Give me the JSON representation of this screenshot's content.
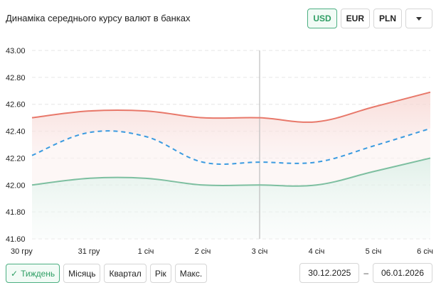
{
  "header": {
    "title": "Динаміка середнього курсу валют в банках"
  },
  "currency_buttons": [
    {
      "label": "USD",
      "active": true
    },
    {
      "label": "EUR",
      "active": false
    },
    {
      "label": "PLN",
      "active": false
    }
  ],
  "period_buttons": [
    {
      "label": "Тиждень",
      "active": true
    },
    {
      "label": "Місяць",
      "active": false
    },
    {
      "label": "Квартал",
      "active": false
    },
    {
      "label": "Рік",
      "active": false
    },
    {
      "label": "Макс.",
      "active": false
    }
  ],
  "date_range": {
    "from": "30.12.2025",
    "separator": "–",
    "to": "06.01.2026"
  },
  "colors": {
    "sell": "#e8786a",
    "buy": "#7dbfa0",
    "average": "#3b9be0",
    "accent": "#2e9e64"
  },
  "chart_data": {
    "type": "line",
    "categories": [
      "30 гру",
      "31 гру",
      "1 січ",
      "2 січ",
      "3 січ",
      "4 січ",
      "5 січ",
      "6 січ"
    ],
    "series": [
      {
        "key": "sell",
        "values": [
          42.5,
          42.55,
          42.55,
          42.5,
          42.5,
          42.47,
          42.58,
          42.69
        ],
        "style": "solid"
      },
      {
        "key": "average",
        "values": [
          42.22,
          42.39,
          42.36,
          42.17,
          42.17,
          42.17,
          42.29,
          42.42
        ],
        "style": "dashed"
      },
      {
        "key": "buy",
        "values": [
          42.0,
          42.05,
          42.05,
          42.0,
          42.0,
          42.0,
          42.1,
          42.2
        ],
        "style": "solid"
      }
    ],
    "y_ticks": [
      "43.00",
      "42.80",
      "42.60",
      "42.40",
      "42.20",
      "42.00",
      "41.80",
      "41.60"
    ],
    "ylim": [
      41.6,
      43.0
    ],
    "hover_category": "3 січ",
    "grid": true
  }
}
